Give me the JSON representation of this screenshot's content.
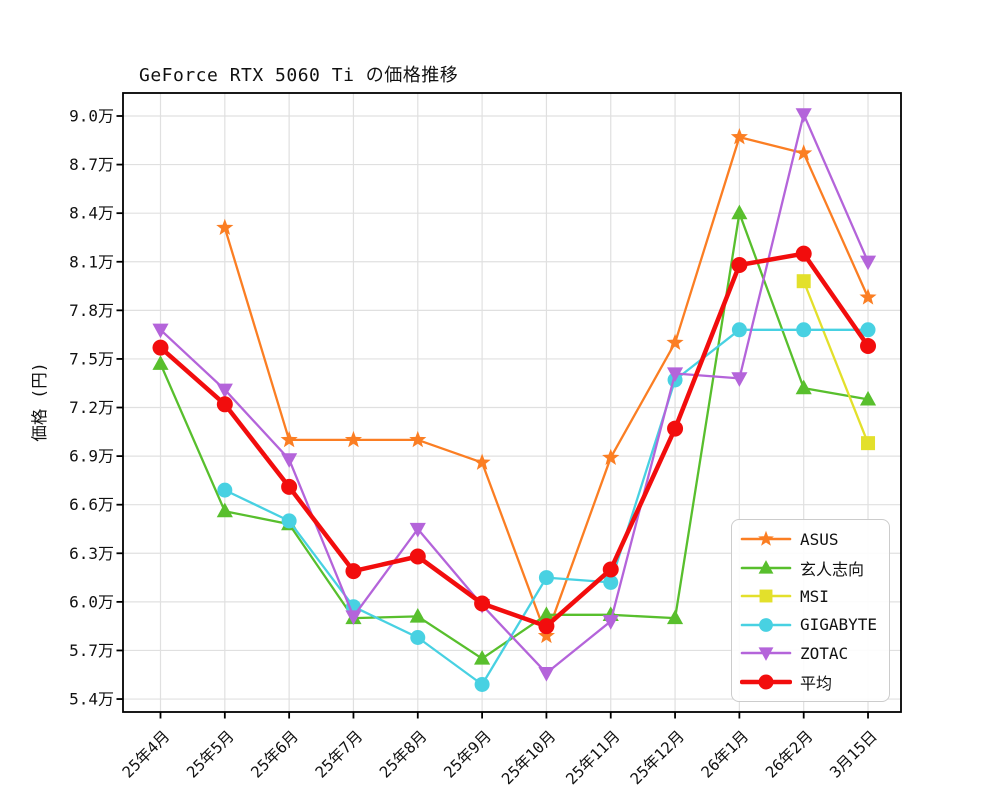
{
  "title": "GeForce RTX 5060 Ti の価格推移",
  "chart_data": {
    "type": "line",
    "title": "GeForce RTX 5060 Ti の価格推移",
    "xlabel": "",
    "ylabel": "価格 (円)",
    "unit": "万円 (10,000 JPY)",
    "grid": true,
    "legend_position": "lower-right",
    "categories": [
      "25年4月",
      "25年5月",
      "25年6月",
      "25年7月",
      "25年8月",
      "25年9月",
      "25年10月",
      "25年11月",
      "25年12月",
      "26年1月",
      "26年2月",
      "3月15日"
    ],
    "yticks": [
      5.4,
      5.7,
      6.0,
      6.3,
      6.6,
      6.9,
      7.2,
      7.5,
      7.8,
      8.1,
      8.4,
      8.7,
      9.0
    ],
    "ytick_labels": [
      "5.4万",
      "5.7万",
      "6.0万",
      "6.3万",
      "6.6万",
      "6.9万",
      "7.2万",
      "7.5万",
      "7.8万",
      "8.1万",
      "8.4万",
      "8.7万",
      "9.0万"
    ],
    "ylim": [
      5.32,
      9.142
    ],
    "colors": {
      "grid": "#e0e0e0",
      "axis": "#000000",
      "text": "#111111",
      "legend_border": "#cccccc"
    },
    "series": [
      {
        "name": "ASUS",
        "color": "#fb7e23",
        "marker": "star",
        "values": [
          null,
          8.31,
          7.0,
          7.0,
          7.0,
          6.86,
          5.79,
          6.89,
          7.6,
          8.87,
          8.77,
          7.88
        ]
      },
      {
        "name": "玄人志向",
        "color": "#58bf2d",
        "marker": "triangle-up",
        "values": [
          7.47,
          6.56,
          6.48,
          5.9,
          5.91,
          5.65,
          5.92,
          5.92,
          5.9,
          8.4,
          7.32,
          7.25
        ]
      },
      {
        "name": "MSI",
        "color": "#e3e02b",
        "marker": "square",
        "values": [
          null,
          null,
          null,
          null,
          null,
          null,
          null,
          null,
          null,
          null,
          7.98,
          6.98
        ]
      },
      {
        "name": "GIGABYTE",
        "color": "#48d1e2",
        "marker": "circle",
        "values": [
          null,
          6.69,
          6.5,
          5.97,
          5.78,
          5.49,
          6.15,
          6.12,
          7.37,
          7.68,
          7.68,
          7.68
        ]
      },
      {
        "name": "ZOTAC",
        "color": "#b464da",
        "marker": "triangle-down",
        "values": [
          7.68,
          7.31,
          6.88,
          5.91,
          6.45,
          5.98,
          5.56,
          5.88,
          7.41,
          7.38,
          9.01,
          8.1
        ]
      },
      {
        "name": "平均",
        "color": "#f20d0d",
        "marker": "circle",
        "emphasis": true,
        "values": [
          7.57,
          7.22,
          6.71,
          6.19,
          6.28,
          5.99,
          5.85,
          6.2,
          7.07,
          8.08,
          8.15,
          7.58
        ]
      }
    ]
  }
}
